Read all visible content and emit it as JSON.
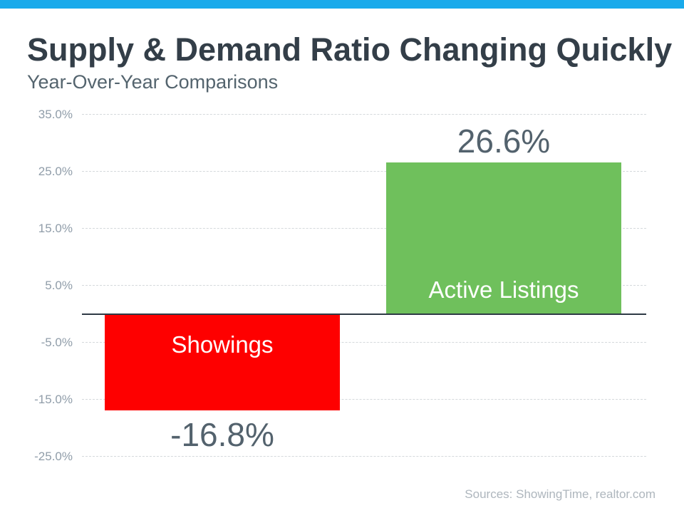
{
  "header": {
    "title": "Supply & Demand Ratio Changing Quickly",
    "subtitle": "Year-Over-Year Comparisons"
  },
  "footer": {
    "sources": "Sources: ShowingTime, realtor.com"
  },
  "colors": {
    "top_accent": "#19AAEB",
    "title_text": "#333E48",
    "subtitle_text": "#54646E",
    "axis_label": "#909DA9",
    "gridline": "#D4D8DB",
    "zero_line": "#2E3A45",
    "value_label": "#53626D",
    "bar_inside_label": "#FFFFFF",
    "sources_text": "#AEB6BD"
  },
  "chart_data": {
    "type": "bar",
    "title": "Supply & Demand Ratio Changing Quickly",
    "subtitle": "Year-Over-Year Comparisons",
    "categories": [
      "Showings",
      "Active Listings"
    ],
    "values": [
      -16.8,
      26.6
    ],
    "value_labels": [
      "-16.8%",
      "26.6%"
    ],
    "bar_colors": [
      "#FE0000",
      "#6FC05C"
    ],
    "bar_label_placement": [
      "inside-top",
      "inside-bottom"
    ],
    "value_label_placement": [
      "below-bar",
      "above-bar"
    ],
    "xlabel": "",
    "ylabel": "",
    "ylim": [
      -25,
      35
    ],
    "yticks": [
      35,
      25,
      15,
      5,
      -5,
      -15,
      -25
    ],
    "ytick_labels": [
      "35.0%",
      "25.0%",
      "15.0%",
      "5.0%",
      "-5.0%",
      "-15.0%",
      "-25.0%"
    ],
    "grid": true,
    "legend_position": "none"
  }
}
